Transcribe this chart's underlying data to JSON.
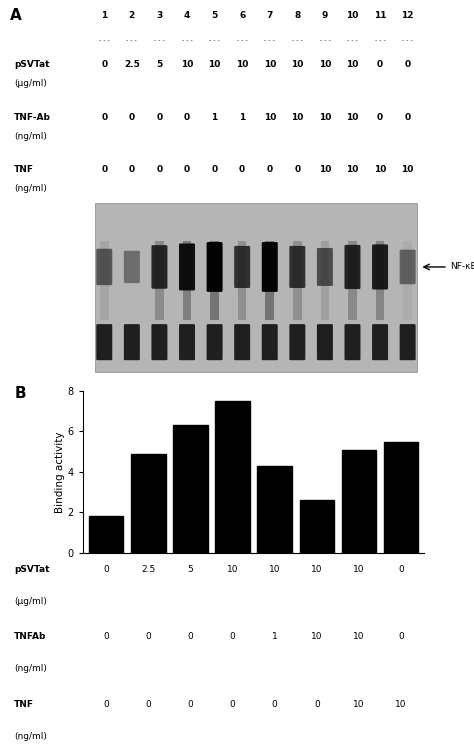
{
  "panel_a_label": "A",
  "panel_b_label": "B",
  "bar_values": [
    1.8,
    4.9,
    6.3,
    7.5,
    4.3,
    2.6,
    5.1,
    5.5
  ],
  "bar_color": "#000000",
  "ylabel": "Binding activity",
  "ylim": [
    0,
    8
  ],
  "yticks": [
    0,
    2,
    4,
    6,
    8
  ],
  "nfkb_label": "NF-κB",
  "lane_numbers": [
    "1",
    "2",
    "3",
    "4",
    "5",
    "6",
    "7",
    "8",
    "9",
    "10",
    "11",
    "12"
  ],
  "pSVTat_label": "pSVTat\n(μg/ml)",
  "TNFAb_label": "TNF-Ab\n(ng/ml)",
  "TNF_label": "TNF\n(ng/ml)",
  "pSVTat_values": [
    "0",
    "2.5",
    "5",
    "10",
    "10",
    "10",
    "10",
    "10",
    "10",
    "10",
    "0",
    "0"
  ],
  "TNFAb_values": [
    "0",
    "0",
    "0",
    "0",
    "1",
    "1",
    "10",
    "10",
    "10",
    "10",
    "0",
    "0"
  ],
  "TNF_values": [
    "0",
    "0",
    "0",
    "0",
    "0",
    "0",
    "0",
    "0",
    "10",
    "10",
    "10",
    "10"
  ],
  "bar_pSVTat_label": "pSVTat\n(μg/ml)",
  "bar_TNFAb_label": "TNFAb\n(ng/ml)",
  "bar_TNF_label": "TNF\n(ng/ml)",
  "bar_pSVTat": [
    "0",
    "2.5",
    "5",
    "10",
    "10",
    "10",
    "10",
    "0"
  ],
  "bar_TNFAb": [
    "0",
    "0",
    "0",
    "0",
    "1",
    "10",
    "10",
    "0"
  ],
  "bar_TNF": [
    "0",
    "0",
    "0",
    "0",
    "0",
    "0",
    "10",
    "10"
  ],
  "gel_band_intensities": [
    0.22,
    0.0,
    0.6,
    0.78,
    0.93,
    0.52,
    0.93,
    0.52,
    0.3,
    0.63,
    0.68,
    0.12
  ],
  "gel_bg": "#c0c0c0",
  "fig_bg": "#ffffff",
  "text_color": "#000000"
}
